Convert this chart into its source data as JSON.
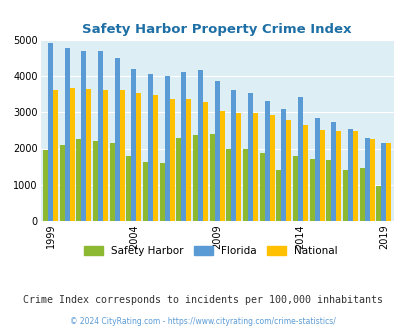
{
  "title": "Safety Harbor Property Crime Index",
  "subtitle": "Crime Index corresponds to incidents per 100,000 inhabitants",
  "footer": "© 2024 CityRating.com - https://www.cityrating.com/crime-statistics/",
  "years": [
    1999,
    2000,
    2001,
    2002,
    2003,
    2004,
    2005,
    2006,
    2007,
    2008,
    2009,
    2010,
    2011,
    2012,
    2013,
    2014,
    2015,
    2016,
    2017,
    2018,
    2019
  ],
  "safety_harbor": [
    1950,
    2100,
    2250,
    2200,
    2150,
    1780,
    1630,
    1600,
    2280,
    2380,
    2400,
    1980,
    1980,
    1880,
    1400,
    1800,
    1700,
    1680,
    1420,
    1450,
    960
  ],
  "florida": [
    4900,
    4780,
    4680,
    4680,
    4500,
    4200,
    4050,
    4000,
    4100,
    4150,
    3850,
    3600,
    3520,
    3310,
    3100,
    3420,
    2830,
    2720,
    2530,
    2290,
    2160
  ],
  "national": [
    3600,
    3680,
    3650,
    3620,
    3600,
    3520,
    3480,
    3370,
    3360,
    3280,
    3040,
    2980,
    2970,
    2920,
    2780,
    2650,
    2520,
    2490,
    2470,
    2270,
    2150
  ],
  "bar_colors": {
    "safety_harbor": "#8db832",
    "florida": "#5b9bd5",
    "national": "#ffc000"
  },
  "bg_color": "#ddeef5",
  "title_color": "#1e6fa5",
  "subtitle_color": "#333333",
  "footer_color": "#5b9bd5",
  "ylim": [
    0,
    5000
  ],
  "yticks": [
    0,
    1000,
    2000,
    3000,
    4000,
    5000
  ],
  "xtick_years": [
    1999,
    2004,
    2009,
    2014,
    2019
  ],
  "legend_labels": [
    "Safety Harbor",
    "Florida",
    "National"
  ]
}
